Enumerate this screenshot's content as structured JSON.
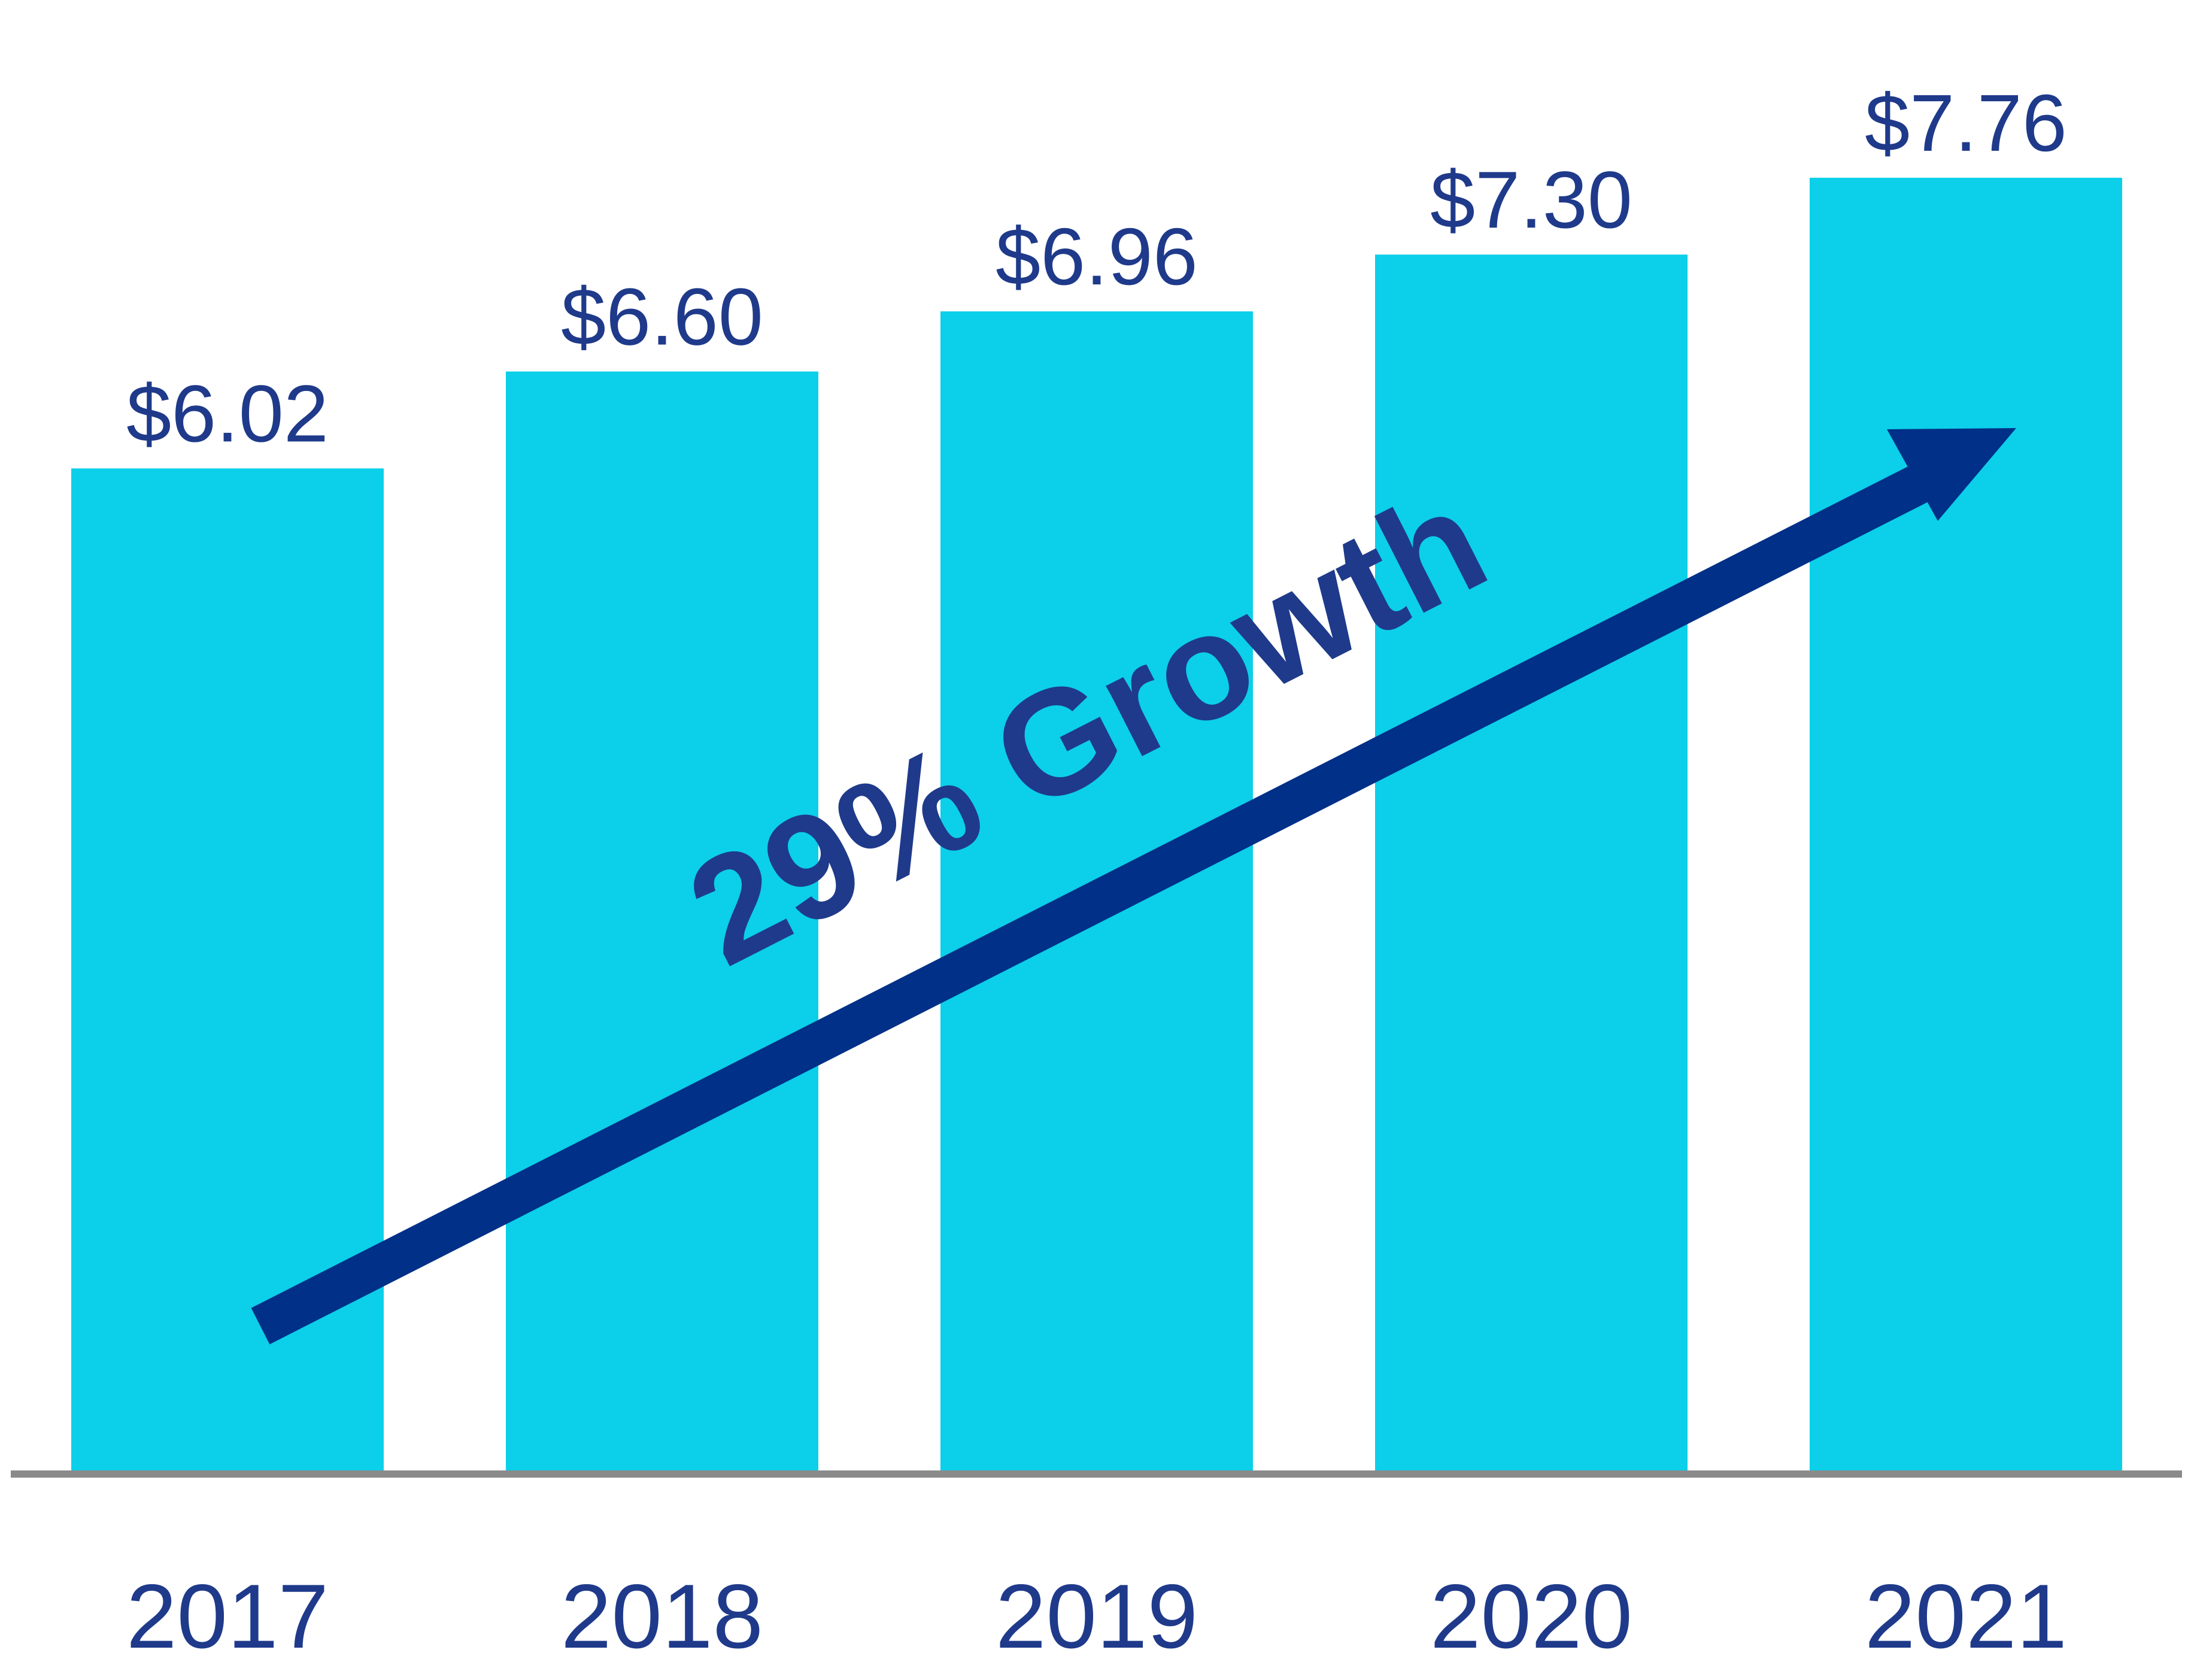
{
  "chart_data": {
    "type": "bar",
    "title": "",
    "xlabel": "",
    "ylabel": "",
    "categories": [
      "2017",
      "2018",
      "2019",
      "2020",
      "2021"
    ],
    "values": [
      6.02,
      6.6,
      6.96,
      7.3,
      7.76
    ],
    "value_labels": [
      "$6.02",
      "$6.60",
      "$6.96",
      "$7.30",
      "$7.76"
    ],
    "ylim": [
      0,
      8.1
    ],
    "grid": false,
    "legend": "none",
    "annotation": {
      "text": "29% Growth",
      "arrow": true
    }
  },
  "colors": {
    "bar": "#0ccfe9",
    "text": "#1f3a8a",
    "arrow": "#003087",
    "axis": "#8a8a8a"
  }
}
